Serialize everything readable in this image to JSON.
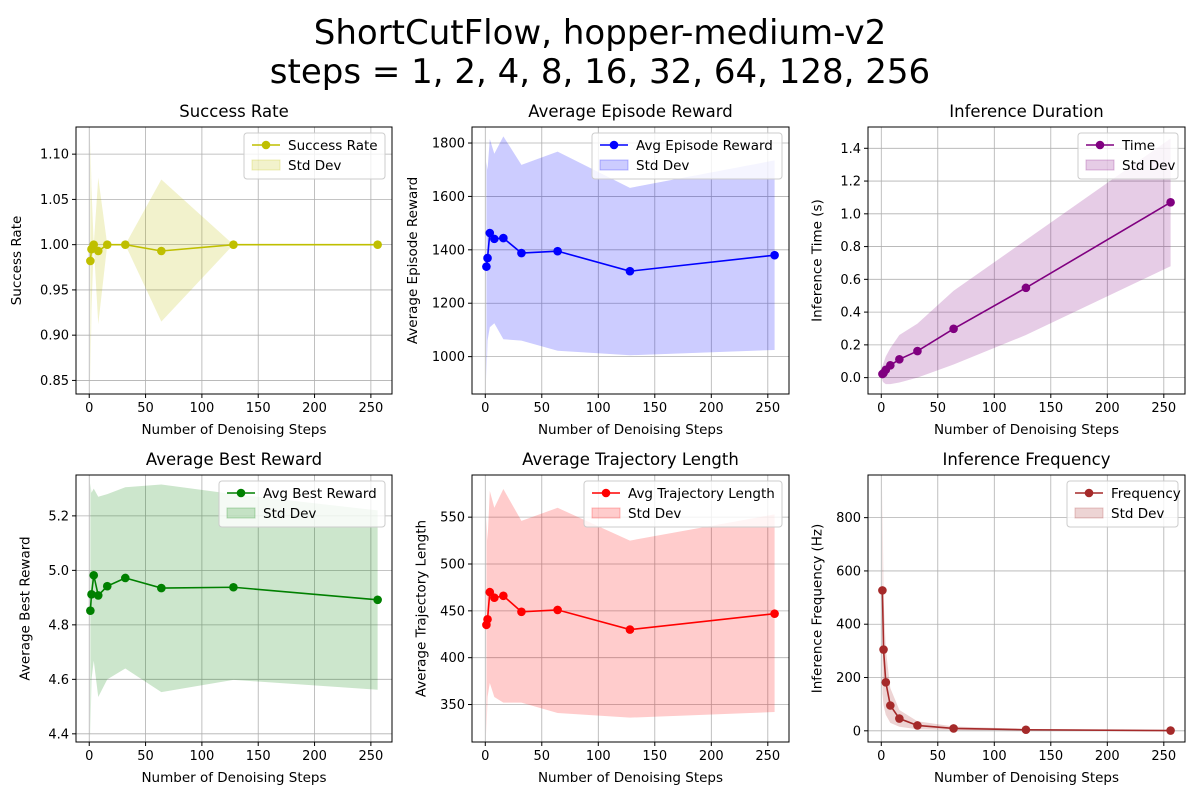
{
  "figure": {
    "title_line1": "ShortCutFlow, hopper-medium-v2",
    "title_line2": "steps = 1, 2, 4, 8, 16, 32, 64, 128, 256"
  },
  "chart_data": [
    {
      "type": "line",
      "title": "Success Rate",
      "xlabel": "Number of Denoising Steps",
      "ylabel": "Success Rate",
      "xlim": [
        -11.75,
        268.75
      ],
      "ylim": [
        0.835,
        1.13
      ],
      "xticks": [
        0,
        50,
        100,
        150,
        200,
        250
      ],
      "yticks": [
        0.85,
        0.9,
        0.95,
        1.0,
        1.05,
        1.1
      ],
      "ytick_labels": [
        "0.85",
        "0.90",
        "0.95",
        "1.00",
        "1.05",
        "1.10"
      ],
      "grid": true,
      "legend": "top-right",
      "color": "#bfbf00",
      "band_color": "#bfbf00",
      "x": [
        1,
        2,
        4,
        8,
        16,
        32,
        64,
        128,
        256
      ],
      "series": [
        {
          "name": "Success Rate",
          "values": [
            0.982,
            0.995,
            1.0,
            0.993,
            1.0,
            1.0,
            0.993,
            1.0,
            1.0
          ]
        }
      ],
      "band": {
        "name": "Std Dev",
        "lower": [
          0.846,
          0.928,
          1.0,
          0.912,
          1.0,
          1.0,
          0.915,
          1.0,
          1.0
        ],
        "upper": [
          1.118,
          1.062,
          1.0,
          1.074,
          1.0,
          1.0,
          1.072,
          1.0,
          1.0
        ]
      }
    },
    {
      "type": "line",
      "title": "Average Episode Reward",
      "xlabel": "Number of Denoising Steps",
      "ylabel": "Average Episode Reward",
      "xlim": [
        -11.75,
        268.75
      ],
      "ylim": [
        860,
        1860
      ],
      "xticks": [
        0,
        50,
        100,
        150,
        200,
        250
      ],
      "yticks": [
        1000,
        1200,
        1400,
        1600,
        1800
      ],
      "ytick_labels": [
        "1000",
        "1200",
        "1400",
        "1600",
        "1800"
      ],
      "grid": true,
      "legend": "top-right",
      "color": "#0000ff",
      "band_color": "#0000ff",
      "x": [
        1,
        2,
        4,
        8,
        16,
        32,
        64,
        128,
        256
      ],
      "series": [
        {
          "name": "Avg Episode Reward",
          "values": [
            1337,
            1369,
            1463,
            1441,
            1444,
            1388,
            1395,
            1320,
            1380
          ]
        }
      ],
      "band": {
        "name": "Std Dev",
        "lower": [
          915,
          1060,
          1110,
          1125,
          1065,
          1060,
          1022,
          1005,
          1025
        ],
        "upper": [
          1730,
          1700,
          1815,
          1760,
          1825,
          1718,
          1768,
          1632,
          1735
        ]
      }
    },
    {
      "type": "line",
      "title": "Inference Duration",
      "xlabel": "Number of Denoising Steps",
      "ylabel": "Inference Time (s)",
      "xlim": [
        -11.75,
        268.75
      ],
      "ylim": [
        -0.1,
        1.53
      ],
      "xticks": [
        0,
        50,
        100,
        150,
        200,
        250
      ],
      "yticks": [
        0.0,
        0.2,
        0.4,
        0.6,
        0.8,
        1.0,
        1.2,
        1.4
      ],
      "ytick_labels": [
        "0.0",
        "0.2",
        "0.4",
        "0.6",
        "0.8",
        "1.0",
        "1.2",
        "1.4"
      ],
      "grid": true,
      "legend": "top-right",
      "color": "#800080",
      "band_color": "#800080",
      "x": [
        1,
        2,
        4,
        8,
        16,
        32,
        64,
        128,
        256
      ],
      "series": [
        {
          "name": "Time",
          "values": [
            0.022,
            0.028,
            0.048,
            0.075,
            0.112,
            0.162,
            0.298,
            0.548,
            1.07
          ]
        }
      ],
      "band": {
        "name": "Std Dev",
        "lower": [
          -0.02,
          -0.03,
          -0.04,
          -0.04,
          -0.03,
          0.0,
          0.08,
          0.26,
          0.68
        ],
        "upper": [
          0.07,
          0.09,
          0.13,
          0.18,
          0.26,
          0.33,
          0.53,
          0.84,
          1.46
        ]
      }
    },
    {
      "type": "line",
      "title": "Average Best Reward",
      "xlabel": "Number of Denoising Steps",
      "ylabel": "Average Best Reward",
      "xlim": [
        -11.75,
        268.75
      ],
      "ylim": [
        4.37,
        5.35
      ],
      "xticks": [
        0,
        50,
        100,
        150,
        200,
        250
      ],
      "yticks": [
        4.4,
        4.6,
        4.8,
        5.0,
        5.2
      ],
      "ytick_labels": [
        "4.4",
        "4.6",
        "4.8",
        "5.0",
        "5.2"
      ],
      "grid": true,
      "legend": "top-right",
      "color": "#008000",
      "band_color": "#008000",
      "x": [
        1,
        2,
        4,
        8,
        16,
        32,
        64,
        128,
        256
      ],
      "series": [
        {
          "name": "Avg Best Reward",
          "values": [
            4.852,
            4.912,
            4.982,
            4.908,
            4.942,
            4.972,
            4.935,
            4.938,
            4.892
          ]
        }
      ],
      "band": {
        "name": "Std Dev",
        "lower": [
          4.385,
          4.6,
          4.668,
          4.535,
          4.6,
          4.64,
          4.553,
          4.598,
          4.562
        ],
        "upper": [
          5.32,
          5.285,
          5.3,
          5.27,
          5.28,
          5.305,
          5.315,
          5.28,
          5.22
        ]
      }
    },
    {
      "type": "line",
      "title": "Average Trajectory Length",
      "xlabel": "Number of Denoising Steps",
      "ylabel": "Average Trajectory Length",
      "xlim": [
        -11.75,
        268.75
      ],
      "ylim": [
        310,
        595
      ],
      "xticks": [
        0,
        50,
        100,
        150,
        200,
        250
      ],
      "yticks": [
        350,
        400,
        450,
        500,
        550
      ],
      "ytick_labels": [
        "350",
        "400",
        "450",
        "500",
        "550"
      ],
      "grid": true,
      "legend": "top-right",
      "color": "#ff0000",
      "band_color": "#ff0000",
      "x": [
        1,
        2,
        4,
        8,
        16,
        32,
        64,
        128,
        256
      ],
      "series": [
        {
          "name": "Avg Trajectory Length",
          "values": [
            435,
            441,
            470,
            464,
            466,
            449,
            451,
            430,
            447
          ]
        }
      ],
      "band": {
        "name": "Std Dev",
        "lower": [
          318,
          358,
          373,
          358,
          352,
          352,
          341,
          336,
          342
        ],
        "upper": [
          550,
          525,
          578,
          560,
          580,
          546,
          560,
          525,
          553
        ]
      }
    },
    {
      "type": "line",
      "title": "Inference Frequency",
      "xlabel": "Number of Denoising Steps",
      "ylabel": "Inference Frequency (Hz)",
      "xlim": [
        -11.75,
        268.75
      ],
      "ylim": [
        -42,
        960
      ],
      "xticks": [
        0,
        50,
        100,
        150,
        200,
        250
      ],
      "yticks": [
        0,
        200,
        400,
        600,
        800
      ],
      "ytick_labels": [
        "0",
        "200",
        "400",
        "600",
        "800"
      ],
      "grid": true,
      "legend": "top-right",
      "color": "#a52a2a",
      "band_color": "#a52a2a",
      "x": [
        1,
        2,
        4,
        8,
        16,
        32,
        64,
        128,
        256
      ],
      "series": [
        {
          "name": "Frequency",
          "values": [
            527,
            305,
            182,
            95,
            46,
            20,
            9,
            4,
            1
          ]
        }
      ],
      "band": {
        "name": "Std Dev",
        "lower": [
          140,
          95,
          60,
          30,
          15,
          6,
          3,
          1,
          0
        ],
        "upper": [
          915,
          500,
          305,
          160,
          78,
          36,
          16,
          7,
          2
        ]
      }
    }
  ]
}
